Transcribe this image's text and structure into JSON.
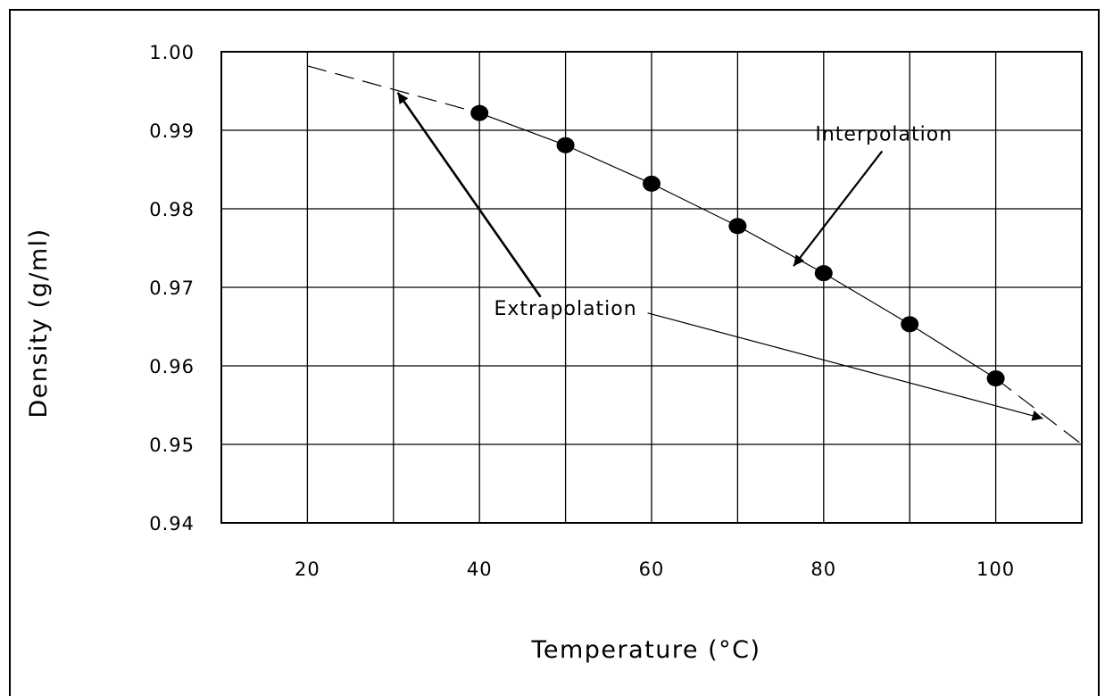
{
  "chart_data": {
    "type": "scatter",
    "title": "",
    "xlabel": "Temperature (°C)",
    "ylabel": "Density (g/ml)",
    "xlim": [
      10,
      110
    ],
    "ylim": [
      0.94,
      1.0
    ],
    "x_ticks": [
      20,
      40,
      60,
      80,
      100
    ],
    "x_tick_labels": [
      "20",
      "40",
      "60",
      "80",
      "100"
    ],
    "y_ticks": [
      0.94,
      0.95,
      0.96,
      0.97,
      0.98,
      0.99,
      1.0
    ],
    "y_tick_labels": [
      "0.94",
      "0.95",
      "0.96",
      "0.97",
      "0.98",
      "0.99",
      "1.00"
    ],
    "grid": true,
    "series": [
      {
        "x": [
          40,
          50,
          60,
          70,
          80,
          90,
          100
        ],
        "y": [
          0.9922,
          0.9881,
          0.9832,
          0.9778,
          0.9718,
          0.9653,
          0.9584
        ]
      }
    ],
    "extrapolated_curve": {
      "left": {
        "x": [
          20,
          40
        ],
        "y": [
          0.9982,
          0.9922
        ]
      },
      "right": {
        "x": [
          100,
          110
        ],
        "y": [
          0.9584,
          0.95
        ]
      }
    },
    "annotations": [
      {
        "text": "Interpolation",
        "label_at": {
          "x": 87,
          "y": 0.9887
        },
        "arrow_to": {
          "x": 76.5,
          "y": 0.9727
        }
      },
      {
        "text": "Extrapolation",
        "label_at": {
          "x": 50,
          "y": 0.9665
        },
        "arrow_to": [
          {
            "x": 30.5,
            "y": 0.9948
          },
          {
            "x": 105.5,
            "y": 0.9533
          }
        ]
      }
    ]
  }
}
